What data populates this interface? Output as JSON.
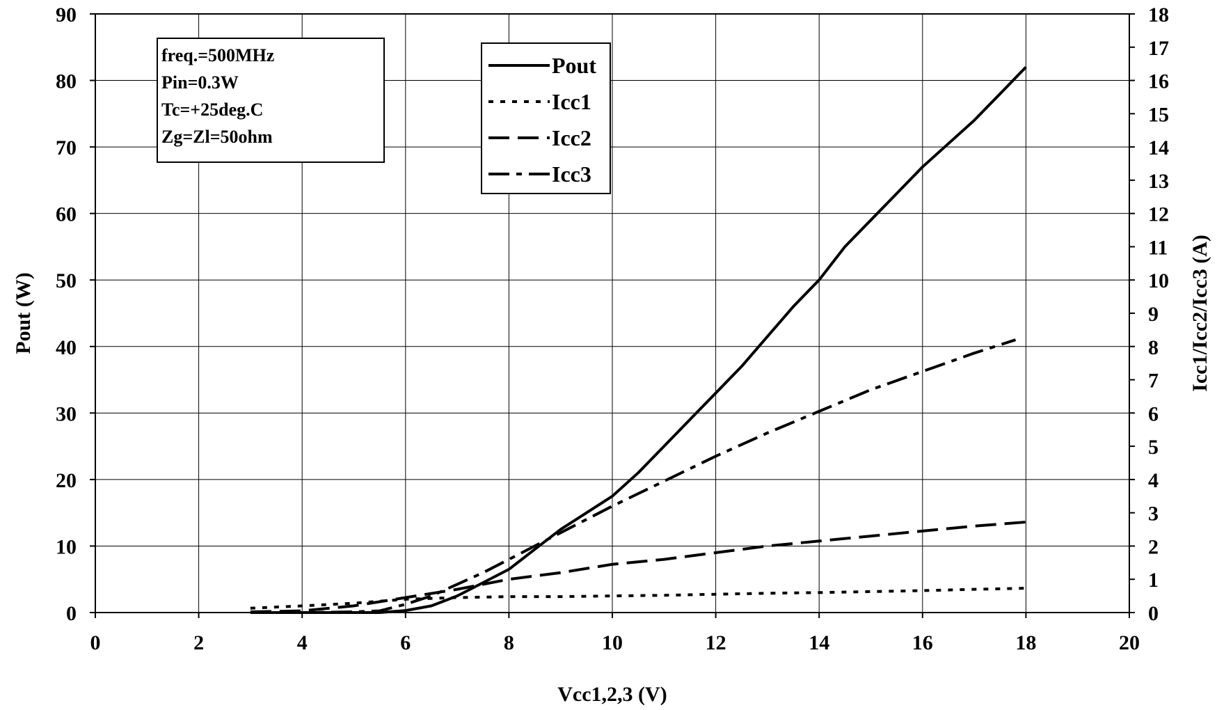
{
  "chart_data": {
    "type": "line",
    "xlabel": "Vcc1,2,3 (V)",
    "ylabel": "Pout (W)",
    "y2label": "Icc1/Icc2/Icc3 (A)",
    "xlim": [
      0,
      20
    ],
    "ylim": [
      0,
      90
    ],
    "y2lim": [
      0,
      18
    ],
    "x_ticks": [
      0,
      2,
      4,
      6,
      8,
      10,
      12,
      14,
      16,
      18,
      20
    ],
    "y_ticks": [
      0,
      10,
      20,
      30,
      40,
      50,
      60,
      70,
      80,
      90
    ],
    "y2_ticks": [
      0,
      1,
      2,
      3,
      4,
      5,
      6,
      7,
      8,
      9,
      10,
      11,
      12,
      13,
      14,
      15,
      16,
      17,
      18
    ],
    "grid": true,
    "legend_position": "top-center",
    "conditions": [
      "freq.=500MHz",
      "Pin=0.3W",
      "Tc=+25deg.C",
      "Zg=Zl=50ohm"
    ],
    "series": [
      {
        "name": "Pout",
        "axis": "left",
        "style": "solid",
        "x": [
          3,
          4,
          5,
          5.5,
          6,
          6.5,
          7,
          7.5,
          8,
          8.5,
          9,
          9.5,
          10,
          10.5,
          11,
          11.5,
          12,
          12.5,
          13,
          13.5,
          14,
          14.5,
          15,
          15.5,
          16,
          16.5,
          17,
          17.5,
          18
        ],
        "y": [
          0,
          0,
          0,
          0,
          0.3,
          1,
          2.5,
          4.5,
          6.5,
          9.5,
          12.5,
          15,
          17.5,
          21,
          25,
          29,
          33,
          37,
          41.5,
          46,
          50,
          55,
          59,
          63,
          67,
          70.5,
          74,
          78,
          82
        ]
      },
      {
        "name": "Icc1",
        "axis": "right",
        "style": "dotted",
        "x": [
          3,
          4,
          5,
          6,
          7,
          8,
          9,
          10,
          11,
          12,
          13,
          14,
          15,
          16,
          17,
          18
        ],
        "y": [
          0.13,
          0.2,
          0.28,
          0.4,
          0.45,
          0.48,
          0.48,
          0.5,
          0.52,
          0.55,
          0.58,
          0.6,
          0.63,
          0.66,
          0.7,
          0.73
        ]
      },
      {
        "name": "Icc2",
        "axis": "right",
        "style": "dashed",
        "x": [
          3,
          4,
          5,
          6,
          7,
          8,
          9,
          10,
          11,
          12,
          13,
          14,
          15,
          16,
          17,
          18
        ],
        "y": [
          0.02,
          0.05,
          0.2,
          0.45,
          0.7,
          1.0,
          1.2,
          1.45,
          1.6,
          1.8,
          2.0,
          2.15,
          2.3,
          2.45,
          2.6,
          2.72
        ]
      },
      {
        "name": "Icc3",
        "axis": "right",
        "style": "dashdot",
        "x": [
          3,
          4,
          5,
          5.5,
          6,
          6.5,
          7,
          7.5,
          8,
          8.5,
          9,
          9.5,
          10,
          11,
          12,
          13,
          14,
          15,
          16,
          17,
          17.8
        ],
        "y": [
          0,
          0,
          0.02,
          0.05,
          0.25,
          0.5,
          0.85,
          1.2,
          1.6,
          2.0,
          2.4,
          2.8,
          3.2,
          3.95,
          4.7,
          5.4,
          6.05,
          6.7,
          7.25,
          7.8,
          8.2
        ]
      }
    ]
  }
}
